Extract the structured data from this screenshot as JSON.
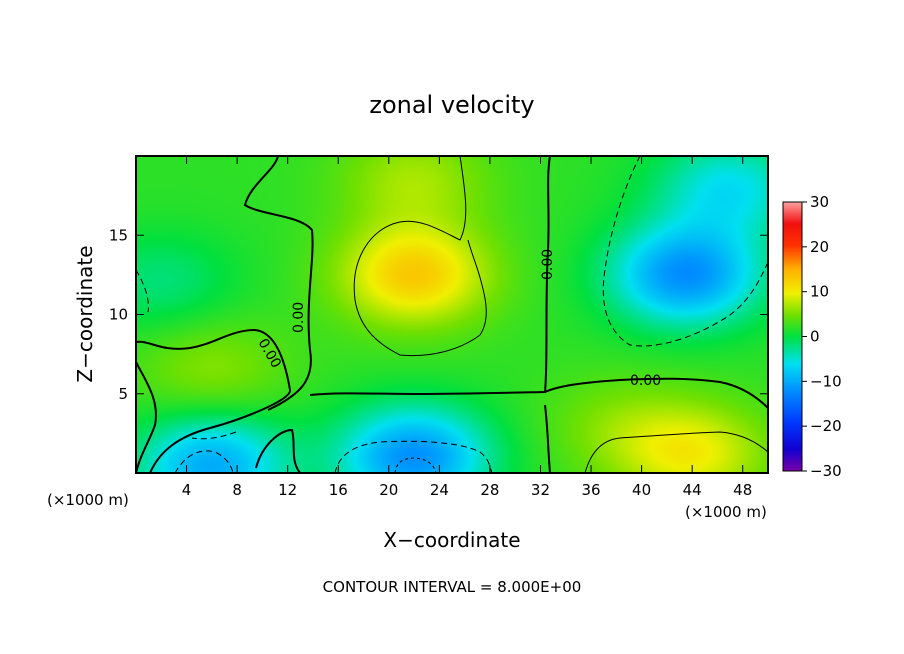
{
  "chart_data": {
    "type": "heatmap",
    "title": "zonal velocity",
    "xlabel": "X−coordinate",
    "ylabel": "Z−coordinate",
    "x_unit": "(×1000 m)",
    "z_unit": "(×1000 m)",
    "xlim": [
      0,
      50
    ],
    "ylim": [
      0,
      20
    ],
    "x_ticks": [
      "4",
      "8",
      "12",
      "16",
      "20",
      "24",
      "28",
      "32",
      "36",
      "40",
      "44",
      "48"
    ],
    "y_ticks": [
      "5",
      "10",
      "15"
    ],
    "colorbar": {
      "range": [
        -30,
        30
      ],
      "ticks": [
        "30",
        "20",
        "10",
        "0",
        "−10",
        "−20",
        "−30"
      ]
    },
    "contour_labels": [
      "0.00",
      "0.00",
      "0.00",
      "0.00"
    ],
    "footer": "CONTOUR INTERVAL = 8.000E+00",
    "features": [
      {
        "x": 22,
        "z": 12.5,
        "value": 13
      },
      {
        "x": 43.5,
        "z": 12.5,
        "value": -12
      },
      {
        "x": 22,
        "z": 1,
        "value": -12
      },
      {
        "x": 6,
        "z": 0.5,
        "value": -10
      },
      {
        "x": 44,
        "z": 1.2,
        "value": 10
      },
      {
        "x": 6,
        "z": 6.5,
        "value": 6
      },
      {
        "x": 22,
        "z": 18.5,
        "value": 7
      },
      {
        "x": 38,
        "z": 3,
        "value": 5
      },
      {
        "x": 47,
        "z": 18,
        "value": -6
      },
      {
        "x": 2,
        "z": 12,
        "value": -2
      }
    ]
  }
}
